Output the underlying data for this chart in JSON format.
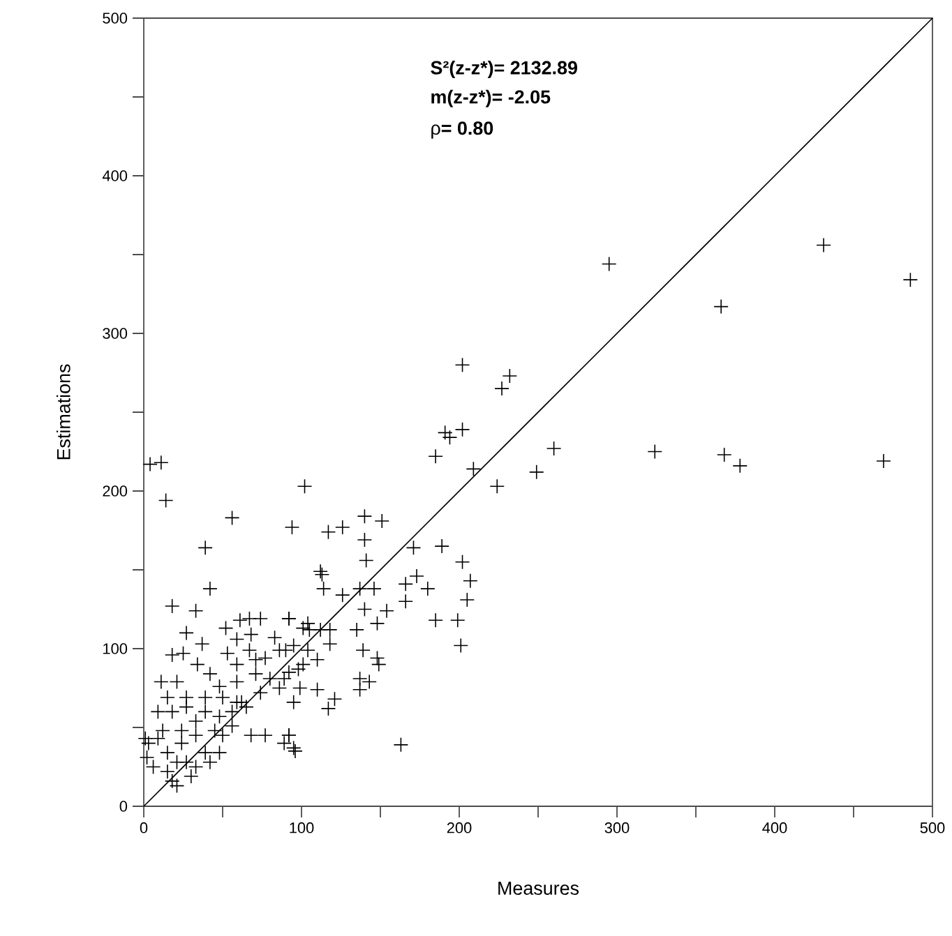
{
  "chart_data": {
    "type": "scatter",
    "xlabel": "Measures",
    "ylabel": "Estimations",
    "xlim": [
      0,
      500
    ],
    "ylim": [
      0,
      500
    ],
    "xticks": [
      0,
      {
        "value": 50,
        "label": null
      },
      100,
      {
        "value": 150,
        "label": null
      },
      200,
      {
        "value": 250,
        "label": null
      },
      300,
      {
        "value": 350,
        "label": null
      },
      400,
      {
        "value": 450,
        "label": null
      },
      500
    ],
    "yticks": [
      0,
      {
        "value": 50,
        "label": null
      },
      100,
      {
        "value": 150,
        "label": null
      },
      200,
      {
        "value": 250,
        "label": null
      },
      300,
      {
        "value": 350,
        "label": null
      },
      400,
      {
        "value": 450,
        "label": null
      },
      500
    ],
    "annotations": [
      "**S²(z-z*)= 2132.89**",
      "**m(z-z*)= -2.05**",
      "ρ**= 0.80**"
    ],
    "series": [
      {
        "color": "#000000",
        "marker": "cross",
        "x": [
          295,
          431,
          486,
          366,
          202,
          232,
          227,
          202,
          194,
          209,
          260,
          249,
          324,
          368,
          378,
          469,
          224,
          4,
          11,
          14,
          39,
          56,
          102,
          94,
          117,
          126,
          140,
          151,
          140,
          141,
          112,
          171,
          189,
          185,
          191,
          202,
          205,
          199,
          201,
          185,
          207,
          113,
          114,
          126,
          137,
          146,
          140,
          166,
          173,
          180,
          166,
          154,
          148,
          135,
          118,
          104,
          92,
          139,
          148,
          149,
          137,
          143,
          137,
          121,
          117,
          110,
          95,
          92,
          96,
          163,
          90,
          104,
          98,
          110,
          118,
          89,
          105,
          112,
          42,
          18,
          33,
          27,
          37,
          52,
          61,
          67,
          74,
          92,
          18,
          25,
          34,
          11,
          21,
          53,
          67,
          77,
          86,
          42,
          48,
          59,
          71,
          80,
          92,
          15,
          27,
          39,
          50,
          62,
          74,
          86,
          9,
          9,
          3,
          1,
          2,
          18,
          27,
          33,
          39,
          48,
          56,
          65,
          45,
          33,
          24,
          15,
          21,
          15,
          21,
          30,
          39,
          48,
          42,
          33,
          27,
          6,
          50,
          56,
          59,
          68,
          77,
          92,
          89,
          95,
          24,
          12,
          18,
          59,
          71,
          95,
          83,
          68,
          59,
          101,
          101,
          99
        ],
        "values": [
          344,
          356,
          334,
          317,
          280,
          273,
          265,
          239,
          234,
          214,
          227,
          212,
          225,
          223,
          216,
          219,
          203,
          217,
          218,
          194,
          164,
          183,
          203,
          177,
          174,
          177,
          184,
          181,
          169,
          156,
          149,
          164,
          165,
          222,
          237,
          155,
          131,
          118,
          102,
          118,
          143,
          147,
          138,
          134,
          138,
          138,
          125,
          141,
          146,
          138,
          130,
          124,
          116,
          112,
          112,
          116,
          119,
          99,
          94,
          90,
          81,
          79,
          74,
          68,
          62,
          74,
          66,
          45,
          35,
          39,
          99,
          99,
          87,
          93,
          103,
          81,
          112,
          112,
          138,
          127,
          124,
          110,
          103,
          113,
          118,
          119,
          119,
          119,
          96,
          97,
          90,
          79,
          79,
          97,
          99,
          94,
          99,
          84,
          76,
          79,
          84,
          81,
          85,
          69,
          69,
          69,
          69,
          66,
          72,
          75,
          60,
          43,
          40,
          43,
          31,
          60,
          63,
          54,
          60,
          57,
          60,
          63,
          48,
          45,
          40,
          34,
          28,
          22,
          13,
          19,
          34,
          34,
          28,
          25,
          28,
          25,
          45,
          51,
          66,
          45,
          45,
          45,
          40,
          37,
          48,
          48,
          16,
          90,
          93,
          102,
          107,
          109,
          106,
          113,
          90,
          75
        ]
      },
      {
        "type": "line",
        "color": "#000000",
        "marker": "none",
        "line_style": "solid",
        "x": [
          0,
          500
        ],
        "values": [
          0,
          500
        ]
      }
    ]
  }
}
